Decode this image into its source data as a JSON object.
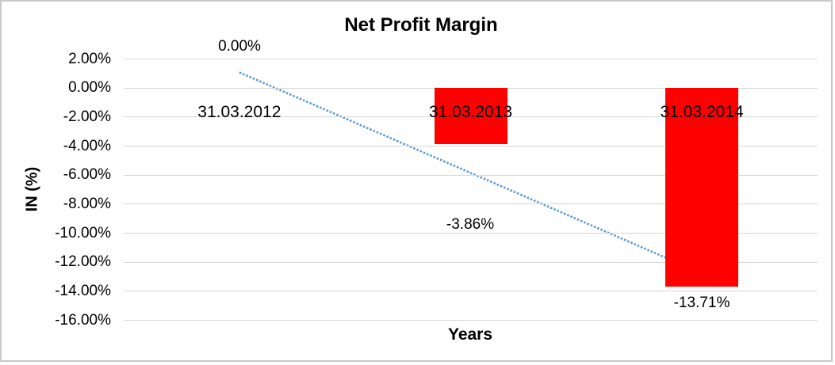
{
  "chart_data": {
    "type": "bar",
    "title": "Net Profit Margin",
    "xlabel": "Years",
    "ylabel": "IN (%)",
    "categories": [
      "31.03.2012",
      "31.03.2013",
      "31.03.2014"
    ],
    "values": [
      0.0,
      -3.86,
      -13.71
    ],
    "data_labels": [
      "0.00%",
      "-3.86%",
      "-13.71%"
    ],
    "ylim": [
      -16,
      2
    ],
    "ytick_step": 2,
    "ytick_labels": [
      "2.00%",
      "0.00%",
      "-2.00%",
      "-4.00%",
      "-6.00%",
      "-8.00%",
      "-10.00%",
      "-12.00%",
      "-14.00%",
      "-16.00%"
    ],
    "grid": true,
    "legend": "none",
    "bar_color": "#ff0000",
    "gridline_color": "#d6d6d6",
    "trendline": {
      "type": "linear",
      "style": "dotted",
      "color": "#5b9bd5",
      "start_value": 1.05,
      "end_value": -12.8
    }
  }
}
